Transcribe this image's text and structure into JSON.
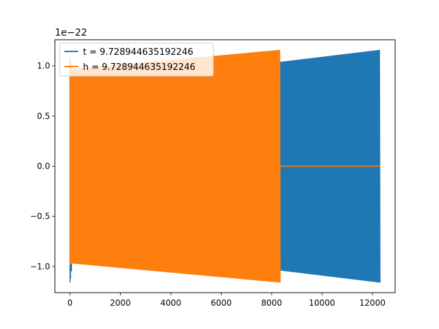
{
  "chart_data": {
    "type": "line",
    "title": "",
    "xlabel": "",
    "ylabel": "",
    "y_scale_label": "1e−22",
    "xlim": [
      -600,
      12900
    ],
    "ylim": [
      -1.26,
      1.26
    ],
    "x_ticks": [
      0,
      2000,
      4000,
      6000,
      8000,
      10000,
      12000
    ],
    "x_tick_labels": [
      "0",
      "2000",
      "4000",
      "6000",
      "8000",
      "10000",
      "12000"
    ],
    "y_ticks": [
      -1.0,
      -0.5,
      0.0,
      0.5,
      1.0
    ],
    "y_tick_labels": [
      "−1.0",
      "−0.5",
      "0.0",
      "0.5",
      "1.0"
    ],
    "grid": false,
    "legend_position": "top-left",
    "series": [
      {
        "name": "t = 9.728944635192246",
        "color": "#1f77b4",
        "style": "dense oscillation",
        "x_range": [
          0,
          12300
        ],
        "envelope_points": [
          {
            "x": 0,
            "upper": 1.07,
            "lower": -1.16
          },
          {
            "x": 100,
            "upper": 0.97,
            "lower": -0.97
          },
          {
            "x": 8350,
            "upper": 1.04,
            "lower": -1.04
          },
          {
            "x": 12300,
            "upper": 1.16,
            "lower": -1.16
          }
        ]
      },
      {
        "name": "h = 9.728944635192246",
        "color": "#ff7f0e",
        "style": "dense oscillation, flat zero tail",
        "x_range": [
          0,
          12300
        ],
        "oscillation_end": 8350,
        "envelope_points": [
          {
            "x": 0,
            "upper": 1.05,
            "lower": -0.98
          },
          {
            "x": 100,
            "upper": 0.97,
            "lower": -0.97
          },
          {
            "x": 8350,
            "upper": 1.16,
            "lower": -1.16
          }
        ],
        "tail_value": 0.0
      }
    ]
  }
}
